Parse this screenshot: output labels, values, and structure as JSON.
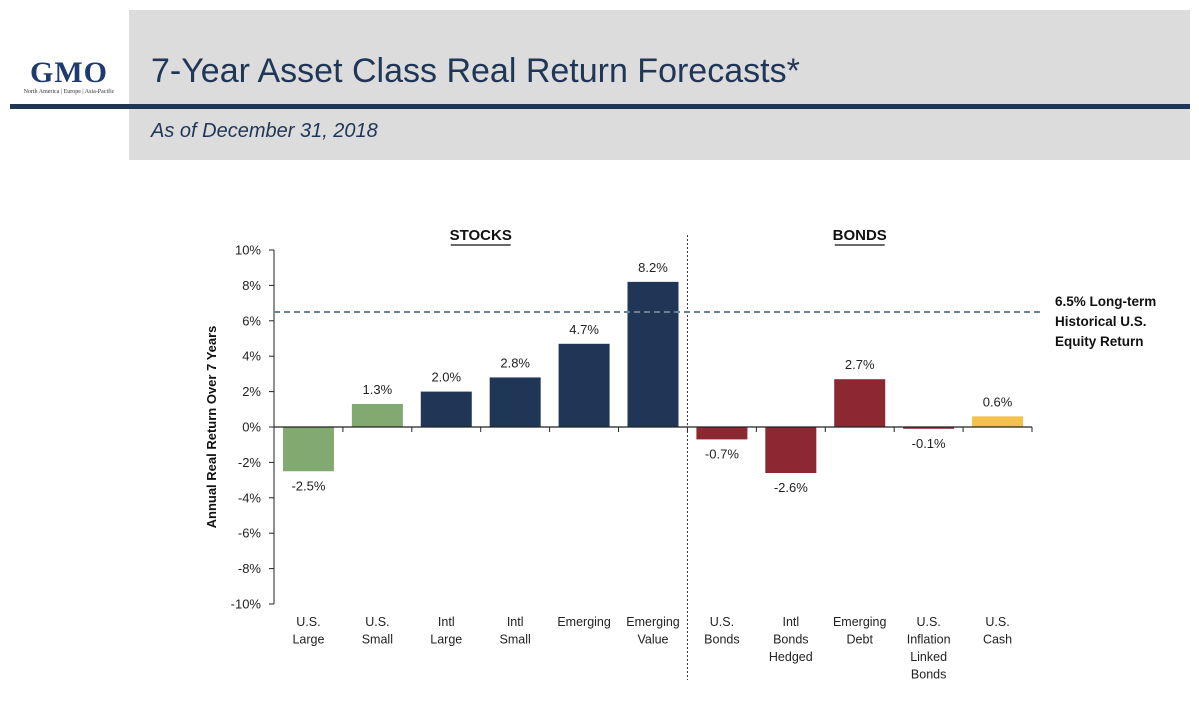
{
  "header": {
    "logo_text": "GMO",
    "logo_subtitle": "North America  |  Europe  |  Asia-Pacific",
    "title": "7-Year Asset Class Real Return Forecasts*",
    "subtitle": "As of December 31, 2018"
  },
  "colors": {
    "header_bg": "#dcdcdc",
    "rule": "#1f3657",
    "us_stocks": "#82a96f",
    "intl_stocks": "#1f3657",
    "bonds": "#8b2832",
    "cash": "#f2c14e",
    "ref_line": "#6b8296"
  },
  "chart_data": {
    "type": "bar",
    "title": "7-Year Asset Class Real Return Forecasts*",
    "ylabel": "Annual Real Return Over 7 Years",
    "xlabel": "",
    "ylim": [
      -10,
      10
    ],
    "yticks": [
      10,
      8,
      6,
      4,
      2,
      0,
      -2,
      -4,
      -6,
      -8,
      -10
    ],
    "ytick_labels": [
      "10%",
      "8%",
      "6%",
      "4%",
      "2%",
      "0%",
      "-2%",
      "-4%",
      "-6%",
      "-8%",
      "-10%"
    ],
    "groups": [
      {
        "name": "STOCKS",
        "range": [
          0,
          5
        ]
      },
      {
        "name": "BONDS",
        "range": [
          6,
          10
        ]
      }
    ],
    "categories": [
      [
        "U.S.",
        "Large"
      ],
      [
        "U.S.",
        "Small"
      ],
      [
        "Intl",
        "Large"
      ],
      [
        "Intl",
        "Small"
      ],
      [
        "Emerging"
      ],
      [
        "Emerging",
        "Value"
      ],
      [
        "U.S.",
        "Bonds"
      ],
      [
        "Intl",
        "Bonds",
        "Hedged"
      ],
      [
        "Emerging",
        "Debt"
      ],
      [
        "U.S.",
        "Inflation",
        "Linked",
        "Bonds"
      ],
      [
        "U.S.",
        "Cash"
      ]
    ],
    "values": [
      -2.5,
      1.3,
      2.0,
      2.8,
      4.7,
      8.2,
      -0.7,
      -2.6,
      2.7,
      -0.1,
      0.6
    ],
    "value_labels": [
      "-2.5%",
      "1.3%",
      "2.0%",
      "2.8%",
      "4.7%",
      "8.2%",
      "-0.7%",
      "-2.6%",
      "2.7%",
      "-0.1%",
      "0.6%"
    ],
    "bar_color_keys": [
      "us_stocks",
      "us_stocks",
      "intl_stocks",
      "intl_stocks",
      "intl_stocks",
      "intl_stocks",
      "bonds",
      "bonds",
      "bonds",
      "bonds",
      "cash"
    ],
    "reference_line": {
      "value": 6.5,
      "label": [
        "6.5% Long-term",
        "Historical U.S.",
        "Equity Return"
      ]
    }
  }
}
